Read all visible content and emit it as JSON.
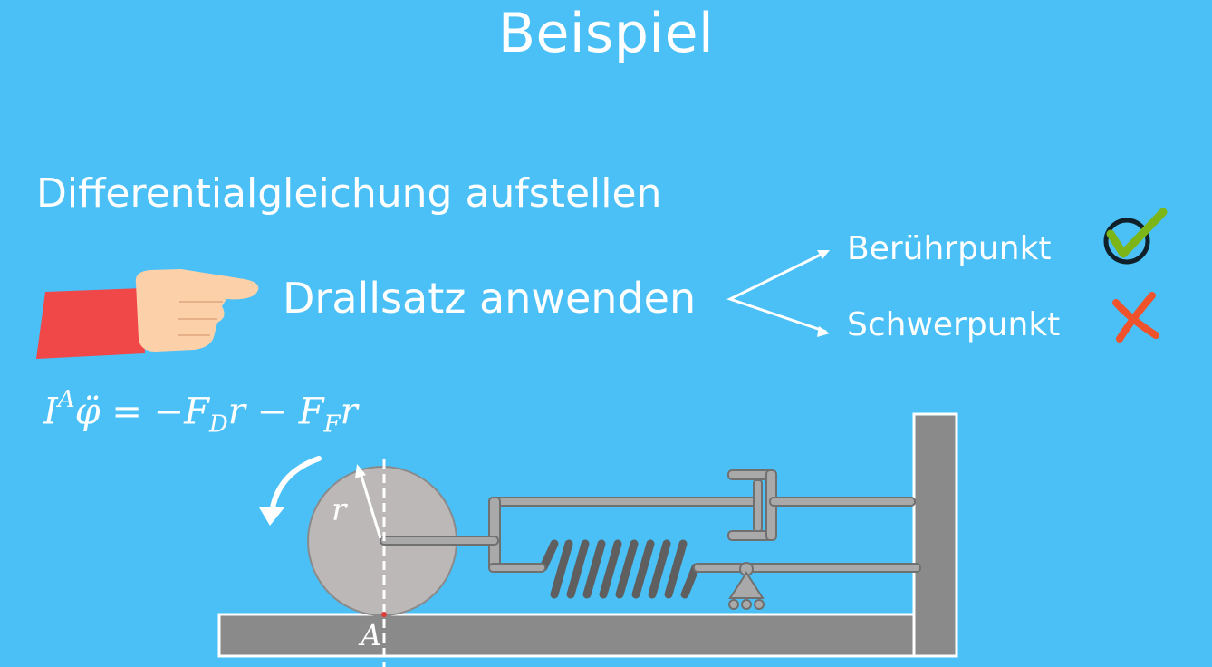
{
  "header": {
    "title": "Beispiel"
  },
  "section": {
    "subtitle": "Differentialgleichung aufstellen"
  },
  "step": {
    "label": "Drallsatz anwenden"
  },
  "options": [
    {
      "label": "Berührpunkt",
      "status": "correct",
      "icon": "check-icon"
    },
    {
      "label": "Schwerpunkt",
      "status": "wrong",
      "icon": "cross-icon"
    }
  ],
  "equation": {
    "lhs_symbol": "I",
    "lhs_superscript": "A",
    "lhs_variable": "φ̈",
    "rhs_part1": " = −F",
    "rhs_sub1": "D",
    "rhs_part2": "r − F",
    "rhs_sub2": "F",
    "rhs_part3": "r"
  },
  "diagram": {
    "radius_label": "r",
    "contact_label": "A"
  },
  "colors": {
    "background": "#4ac0f6",
    "sleeve": "#f04848",
    "hand": "#fcd0a8",
    "check": "#7cb518",
    "cross": "#f0522b",
    "disk": "#bdb8b8",
    "metal": "#8c8c8c"
  }
}
